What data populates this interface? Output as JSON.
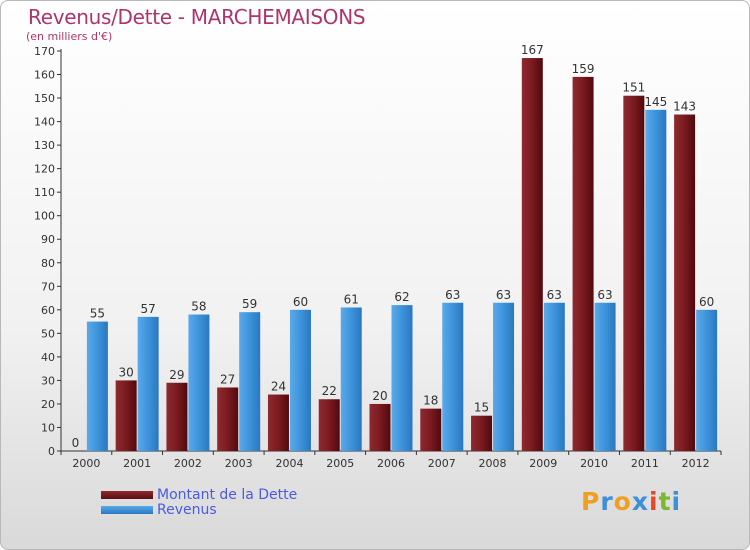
{
  "title": "Revenus/Dette - MARCHEMAISONS",
  "subtitle": "(en milliers d'€)",
  "logo": {
    "letters": [
      "P",
      "r",
      "o",
      "x",
      "i",
      "t",
      "i"
    ],
    "colors": [
      "#f0a020",
      "#3c8fd8",
      "#f0a020",
      "#3c8fd8",
      "#e04a2a",
      "#7cb82f",
      "#3c8fd8"
    ]
  },
  "chart_data": {
    "type": "bar",
    "categories": [
      "2000",
      "2001",
      "2002",
      "2003",
      "2004",
      "2005",
      "2006",
      "2007",
      "2008",
      "2009",
      "2010",
      "2011",
      "2012"
    ],
    "series": [
      {
        "name": "Montant de la Dette",
        "color": "#7a1a1f",
        "values": [
          0,
          30,
          29,
          27,
          24,
          22,
          20,
          18,
          15,
          167,
          159,
          151,
          143
        ]
      },
      {
        "name": "Revenus",
        "color": "#3d93da",
        "values": [
          55,
          57,
          58,
          59,
          60,
          61,
          62,
          63,
          63,
          63,
          63,
          145,
          60
        ]
      }
    ],
    "ylim": [
      0,
      170
    ],
    "yticks": [
      0,
      10,
      20,
      30,
      40,
      50,
      60,
      70,
      80,
      90,
      100,
      110,
      120,
      130,
      140,
      150,
      160,
      170
    ],
    "grid": false,
    "legend": "bottom-left"
  }
}
